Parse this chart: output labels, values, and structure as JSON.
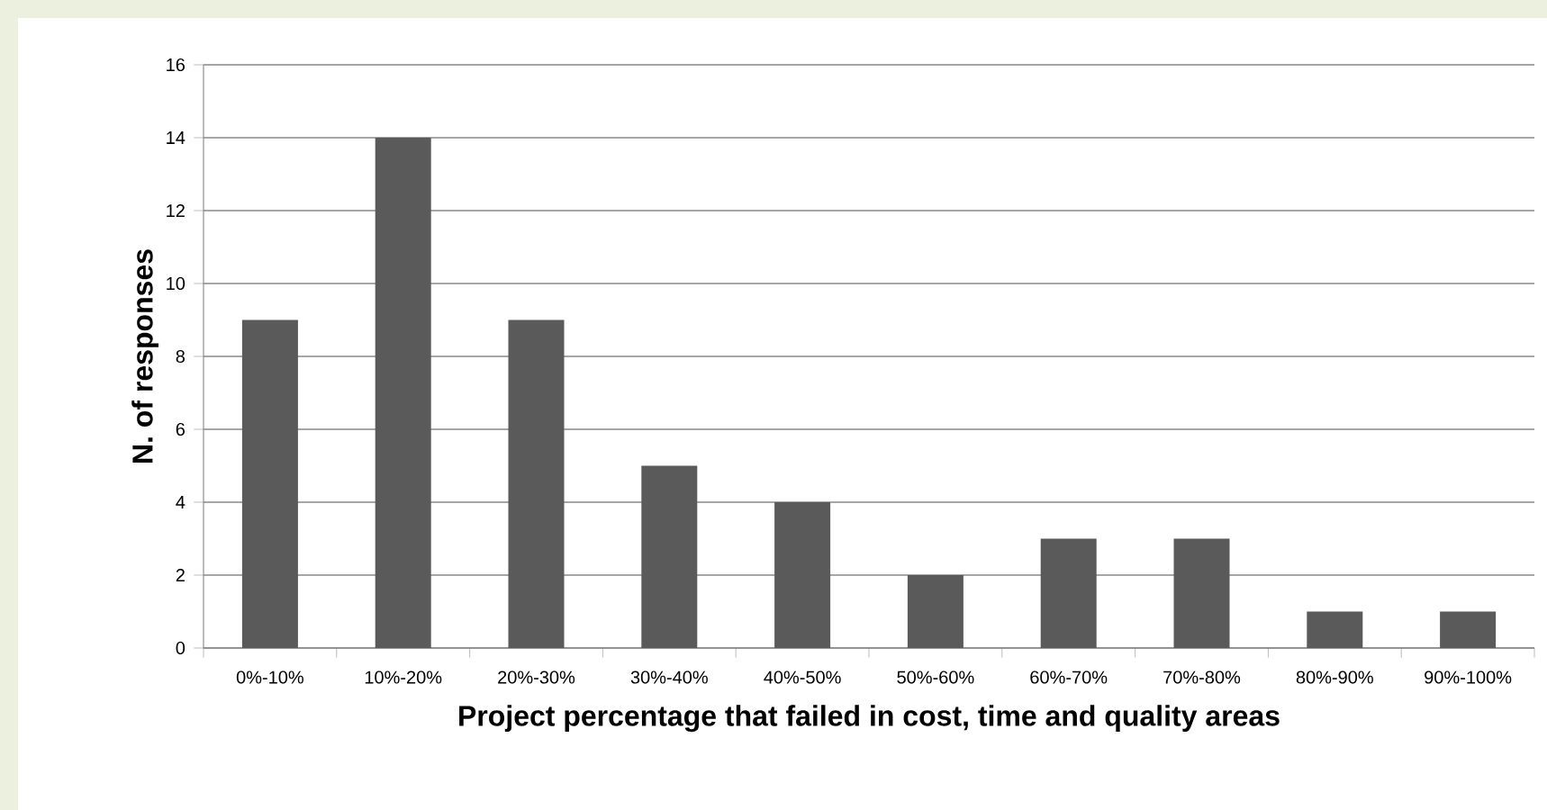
{
  "chart_data": {
    "type": "bar",
    "xlabel": "Project percentage that failed in cost, time and quality areas",
    "ylabel": "N. of responses",
    "categories": [
      "0%-10%",
      "10%-20%",
      "20%-30%",
      "30%-40%",
      "40%-50%",
      "50%-60%",
      "60%-70%",
      "70%-80%",
      "80%-90%",
      "90%-100%"
    ],
    "values": [
      9,
      14,
      9,
      5,
      4,
      2,
      3,
      3,
      1,
      1
    ],
    "color": "#5a5a5a",
    "ylim": [
      0,
      16
    ],
    "yticks": [
      0,
      2,
      4,
      6,
      8,
      10,
      12,
      14,
      16
    ],
    "grid": "y"
  }
}
